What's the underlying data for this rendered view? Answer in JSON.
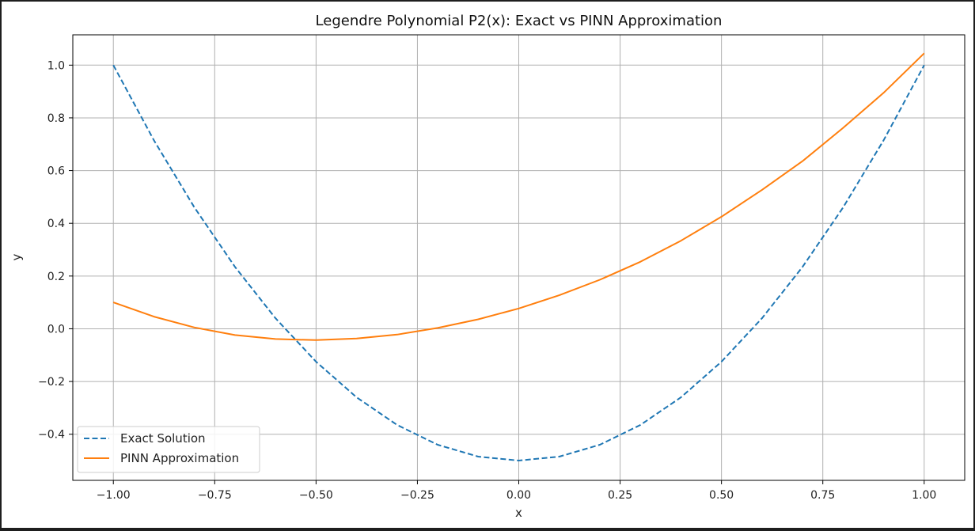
{
  "chart_data": {
    "type": "line",
    "title": "Legendre Polynomial P2(x): Exact vs PINN Approximation",
    "xlabel": "x",
    "ylabel": "y",
    "xlim": [
      -1.1,
      1.1
    ],
    "ylim": [
      -0.575,
      1.115
    ],
    "grid": true,
    "legend_position": "lower-left",
    "x_ticks": [
      -1.0,
      -0.75,
      -0.5,
      -0.25,
      0.0,
      0.25,
      0.5,
      0.75,
      1.0
    ],
    "x_tick_labels": [
      "−1.00",
      "−0.75",
      "−0.50",
      "−0.25",
      "0.00",
      "0.25",
      "0.50",
      "0.75",
      "1.00"
    ],
    "y_ticks": [
      -0.4,
      -0.2,
      0.0,
      0.2,
      0.4,
      0.6,
      0.8,
      1.0
    ],
    "y_tick_labels": [
      "−0.4",
      "−0.2",
      "0.0",
      "0.2",
      "0.4",
      "0.6",
      "0.8",
      "1.0"
    ],
    "series": [
      {
        "name": "Exact Solution",
        "color": "#1f77b4",
        "style": "dashed",
        "x": [
          -1.0,
          -0.9,
          -0.8,
          -0.7,
          -0.6,
          -0.5,
          -0.4,
          -0.3,
          -0.2,
          -0.1,
          0.0,
          0.1,
          0.2,
          0.3,
          0.4,
          0.5,
          0.6,
          0.7,
          0.8,
          0.9,
          1.0
        ],
        "y": [
          1.0,
          0.715,
          0.46,
          0.235,
          0.04,
          -0.125,
          -0.26,
          -0.365,
          -0.44,
          -0.485,
          -0.5,
          -0.485,
          -0.44,
          -0.365,
          -0.26,
          -0.125,
          0.04,
          0.235,
          0.46,
          0.715,
          1.0
        ]
      },
      {
        "name": "PINN Approximation",
        "color": "#ff7f0e",
        "style": "solid",
        "x": [
          -1.0,
          -0.9,
          -0.8,
          -0.7,
          -0.6,
          -0.5,
          -0.4,
          -0.3,
          -0.2,
          -0.1,
          0.0,
          0.1,
          0.2,
          0.3,
          0.4,
          0.5,
          0.6,
          0.7,
          0.8,
          0.9,
          1.0
        ],
        "y": [
          0.1,
          0.046,
          0.005,
          -0.024,
          -0.039,
          -0.043,
          -0.037,
          -0.022,
          0.003,
          0.036,
          0.077,
          0.127,
          0.186,
          0.254,
          0.334,
          0.425,
          0.527,
          0.636,
          0.762,
          0.895,
          1.045
        ]
      }
    ]
  }
}
